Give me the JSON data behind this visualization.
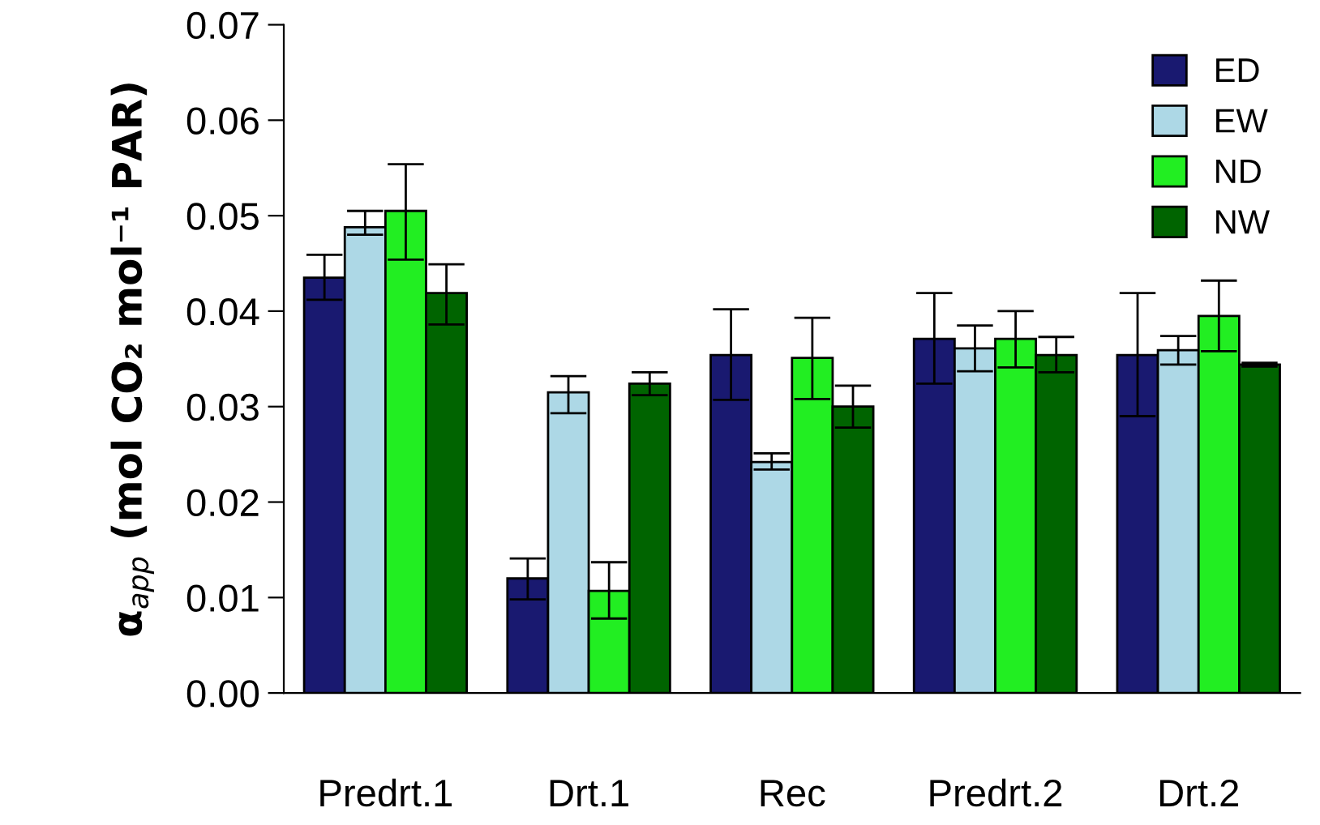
{
  "chart_data": {
    "type": "bar",
    "ylabel": "α$_{app}$ (mol CO₂ mol⁻¹ PAR)",
    "categories": [
      "Predrt.1",
      "Drt.1",
      "Rec",
      "Predrt.2",
      "Drt.2"
    ],
    "series": [
      {
        "name": "ED",
        "color": "#191970",
        "values": [
          0.0435,
          0.012,
          0.0354,
          0.0371,
          0.0354
        ],
        "errors": [
          [
            0.0412,
            0.0459
          ],
          [
            0.0098,
            0.0141
          ],
          [
            0.0307,
            0.0402
          ],
          [
            0.0324,
            0.0419
          ],
          [
            0.029,
            0.0419
          ]
        ]
      },
      {
        "name": "EW",
        "color": "#add8e6",
        "values": [
          0.0488,
          0.0315,
          0.0242,
          0.0361,
          0.0359
        ],
        "errors": [
          [
            0.048,
            0.0505
          ],
          [
            0.0293,
            0.0332
          ],
          [
            0.0234,
            0.0251
          ],
          [
            0.0337,
            0.0385
          ],
          [
            0.0344,
            0.0374
          ]
        ]
      },
      {
        "name": "ND",
        "color": "#22ee22",
        "values": [
          0.0505,
          0.0107,
          0.0351,
          0.0371,
          0.0395
        ],
        "errors": [
          [
            0.0454,
            0.0554
          ],
          [
            0.0078,
            0.0137
          ],
          [
            0.0308,
            0.0393
          ],
          [
            0.0341,
            0.04
          ],
          [
            0.0358,
            0.0432
          ]
        ]
      },
      {
        "name": "NW",
        "color": "#006400",
        "values": [
          0.0419,
          0.0324,
          0.03,
          0.0354,
          0.0344
        ],
        "errors": [
          [
            0.0386,
            0.0449
          ],
          [
            0.0312,
            0.0336
          ],
          [
            0.0278,
            0.0322
          ],
          [
            0.0336,
            0.0373
          ],
          [
            0.0342,
            0.0346
          ]
        ]
      }
    ],
    "ylim": [
      0,
      0.07
    ],
    "yticks": [
      {
        "value": 0,
        "label": "0.00"
      },
      {
        "value": 0.01,
        "label": "0.01"
      },
      {
        "value": 0.02,
        "label": "0.02"
      },
      {
        "value": 0.03,
        "label": "0.03"
      },
      {
        "value": 0.04,
        "label": "0.04"
      },
      {
        "value": 0.05,
        "label": "0.05"
      },
      {
        "value": 0.06,
        "label": "0.06"
      },
      {
        "value": 0.07,
        "label": "0.07"
      }
    ],
    "grid": false,
    "legend": "top right"
  }
}
